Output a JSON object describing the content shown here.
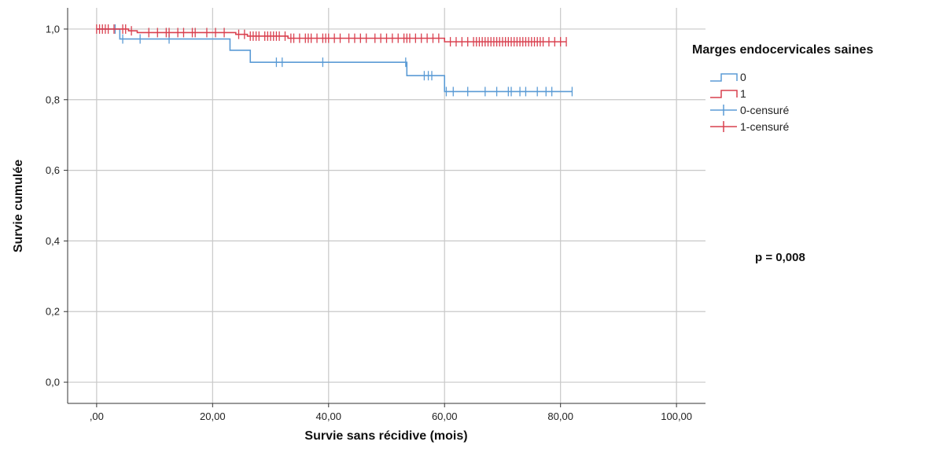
{
  "chart_data": {
    "type": "line",
    "subtype": "kaplan-meier",
    "title": "",
    "xlabel": "Survie sans récidive (mois)",
    "ylabel": "Survie cumulée",
    "xlim": [
      -5,
      105
    ],
    "ylim": [
      -0.06,
      1.06
    ],
    "x_ticks": [
      0,
      20,
      40,
      60,
      80,
      100
    ],
    "x_tick_labels": [
      ",00",
      "20,00",
      "40,00",
      "60,00",
      "80,00",
      "100,00"
    ],
    "y_ticks": [
      0,
      0.2,
      0.4,
      0.6,
      0.8,
      1.0
    ],
    "y_tick_labels": [
      "0,0",
      "0,2",
      "0,4",
      "0,6",
      "0,8",
      "1,0"
    ],
    "grid": true,
    "legend_position": "right",
    "legend_title": "Marges endocervicales saines",
    "annotation": "p = 0,008",
    "series": [
      {
        "name": "0",
        "censored_name": "0-censuré",
        "color": "#5b9bd5",
        "steps": [
          [
            0,
            1.0
          ],
          [
            4,
            0.972
          ],
          [
            23,
            0.94
          ],
          [
            26.5,
            0.906
          ],
          [
            53.5,
            0.868
          ],
          [
            60,
            0.823
          ],
          [
            82,
            0.823
          ]
        ],
        "censored": [
          [
            3.2,
            1.0
          ],
          [
            4.5,
            0.972
          ],
          [
            7.5,
            0.972
          ],
          [
            12.5,
            0.972
          ],
          [
            31,
            0.906
          ],
          [
            32,
            0.906
          ],
          [
            39,
            0.906
          ],
          [
            53.3,
            0.906
          ],
          [
            56.5,
            0.868
          ],
          [
            57.2,
            0.868
          ],
          [
            57.8,
            0.868
          ],
          [
            60.3,
            0.823
          ],
          [
            61.5,
            0.823
          ],
          [
            64,
            0.823
          ],
          [
            67,
            0.823
          ],
          [
            69,
            0.823
          ],
          [
            71,
            0.823
          ],
          [
            71.5,
            0.823
          ],
          [
            73,
            0.823
          ],
          [
            74,
            0.823
          ],
          [
            76,
            0.823
          ],
          [
            77.5,
            0.823
          ],
          [
            78.5,
            0.823
          ],
          [
            82,
            0.823
          ]
        ]
      },
      {
        "name": "1",
        "censored_name": "1-censuré",
        "color": "#d9404f",
        "steps": [
          [
            0,
            1.0
          ],
          [
            5.5,
            0.995
          ],
          [
            7,
            0.99
          ],
          [
            24,
            0.985
          ],
          [
            26,
            0.98
          ],
          [
            33,
            0.974
          ],
          [
            60,
            0.964
          ],
          [
            81,
            0.964
          ]
        ],
        "censored": [
          [
            0,
            1.0
          ],
          [
            0.5,
            1.0
          ],
          [
            1,
            1.0
          ],
          [
            1.5,
            1.0
          ],
          [
            2,
            1.0
          ],
          [
            3,
            1.0
          ],
          [
            4.5,
            1.0
          ],
          [
            5,
            1.0
          ],
          [
            6,
            0.995
          ],
          [
            9,
            0.99
          ],
          [
            10.5,
            0.99
          ],
          [
            12,
            0.99
          ],
          [
            12.5,
            0.99
          ],
          [
            14,
            0.99
          ],
          [
            15,
            0.99
          ],
          [
            16.5,
            0.99
          ],
          [
            17,
            0.99
          ],
          [
            19,
            0.99
          ],
          [
            20.5,
            0.99
          ],
          [
            22,
            0.99
          ],
          [
            24.5,
            0.985
          ],
          [
            25.5,
            0.985
          ],
          [
            26.5,
            0.98
          ],
          [
            27,
            0.98
          ],
          [
            27.5,
            0.98
          ],
          [
            28,
            0.98
          ],
          [
            29,
            0.98
          ],
          [
            29.5,
            0.98
          ],
          [
            30,
            0.98
          ],
          [
            30.5,
            0.98
          ],
          [
            31,
            0.98
          ],
          [
            31.5,
            0.98
          ],
          [
            32.5,
            0.98
          ],
          [
            33.5,
            0.974
          ],
          [
            34,
            0.974
          ],
          [
            35,
            0.974
          ],
          [
            36,
            0.974
          ],
          [
            36.5,
            0.974
          ],
          [
            37,
            0.974
          ],
          [
            38,
            0.974
          ],
          [
            39,
            0.974
          ],
          [
            39.5,
            0.974
          ],
          [
            40,
            0.974
          ],
          [
            41,
            0.974
          ],
          [
            42,
            0.974
          ],
          [
            43.5,
            0.974
          ],
          [
            44.5,
            0.974
          ],
          [
            45.5,
            0.974
          ],
          [
            46.5,
            0.974
          ],
          [
            48,
            0.974
          ],
          [
            49,
            0.974
          ],
          [
            50,
            0.974
          ],
          [
            51,
            0.974
          ],
          [
            52,
            0.974
          ],
          [
            53,
            0.974
          ],
          [
            53.5,
            0.974
          ],
          [
            54,
            0.974
          ],
          [
            55,
            0.974
          ],
          [
            56,
            0.974
          ],
          [
            57,
            0.974
          ],
          [
            58,
            0.974
          ],
          [
            59,
            0.974
          ],
          [
            61,
            0.964
          ],
          [
            62,
            0.964
          ],
          [
            63,
            0.964
          ],
          [
            64,
            0.964
          ],
          [
            65,
            0.964
          ],
          [
            65.5,
            0.964
          ],
          [
            66,
            0.964
          ],
          [
            66.5,
            0.964
          ],
          [
            67,
            0.964
          ],
          [
            67.5,
            0.964
          ],
          [
            68,
            0.964
          ],
          [
            68.5,
            0.964
          ],
          [
            69,
            0.964
          ],
          [
            69.5,
            0.964
          ],
          [
            70,
            0.964
          ],
          [
            70.5,
            0.964
          ],
          [
            71,
            0.964
          ],
          [
            71.5,
            0.964
          ],
          [
            72,
            0.964
          ],
          [
            72.5,
            0.964
          ],
          [
            73,
            0.964
          ],
          [
            73.5,
            0.964
          ],
          [
            74,
            0.964
          ],
          [
            74.5,
            0.964
          ],
          [
            75,
            0.964
          ],
          [
            75.5,
            0.964
          ],
          [
            76,
            0.964
          ],
          [
            76.5,
            0.964
          ],
          [
            77,
            0.964
          ],
          [
            78,
            0.964
          ],
          [
            79,
            0.964
          ],
          [
            80,
            0.964
          ],
          [
            81,
            0.964
          ]
        ]
      }
    ]
  }
}
